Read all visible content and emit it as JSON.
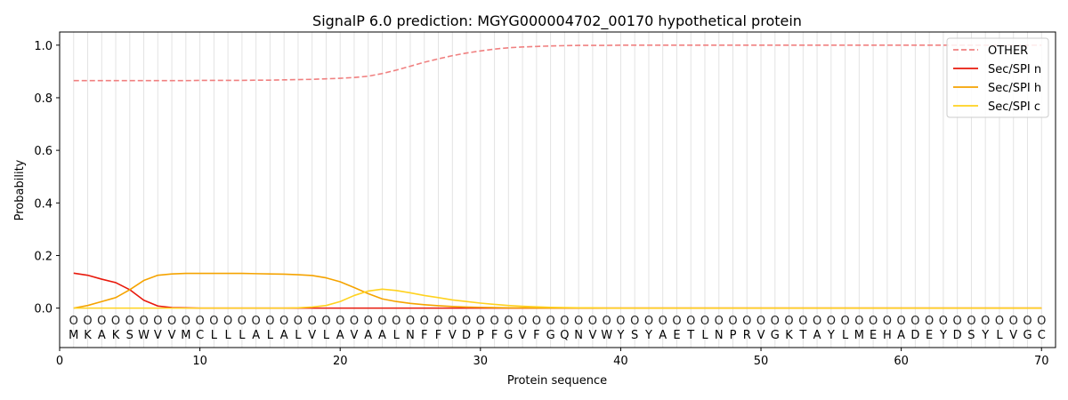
{
  "chart_data": {
    "type": "line",
    "title": "SignalP 6.0 prediction: MGYG000004702_00170 hypothetical protein",
    "xlabel": "Protein sequence",
    "ylabel": "Probability",
    "xlim": [
      0,
      71
    ],
    "ylim": [
      -0.15,
      1.05
    ],
    "xticks": [
      0,
      10,
      20,
      30,
      40,
      50,
      60,
      70
    ],
    "yticks": [
      0.0,
      0.2,
      0.4,
      0.6,
      0.8,
      1.0
    ],
    "ytick_labels": [
      "0.0",
      "0.2",
      "0.4",
      "0.6",
      "0.8",
      "1.0"
    ],
    "grid": "vertical lines at each residue",
    "legend_position": "top-right",
    "sequence": [
      "M",
      "K",
      "A",
      "K",
      "S",
      "W",
      "V",
      "V",
      "M",
      "C",
      "L",
      "L",
      "L",
      "A",
      "L",
      "A",
      "L",
      "V",
      "L",
      "A",
      "V",
      "A",
      "A",
      "L",
      "N",
      "F",
      "F",
      "V",
      "D",
      "P",
      "F",
      "G",
      "V",
      "F",
      "G",
      "Q",
      "N",
      "V",
      "W",
      "Y",
      "S",
      "Y",
      "A",
      "E",
      "T",
      "L",
      "N",
      "P",
      "R",
      "V",
      "G",
      "K",
      "T",
      "A",
      "Y",
      "L",
      "M",
      "E",
      "H",
      "A",
      "D",
      "E",
      "Y",
      "D",
      "S",
      "Y",
      "L",
      "V",
      "G",
      "C"
    ],
    "residue_class_label": "O",
    "series": [
      {
        "name": "OTHER",
        "color": "#f08080",
        "dashed": true,
        "values": [
          0.865,
          0.865,
          0.865,
          0.865,
          0.865,
          0.865,
          0.865,
          0.865,
          0.865,
          0.866,
          0.866,
          0.866,
          0.866,
          0.867,
          0.867,
          0.868,
          0.869,
          0.87,
          0.872,
          0.874,
          0.877,
          0.882,
          0.892,
          0.905,
          0.92,
          0.935,
          0.948,
          0.96,
          0.97,
          0.978,
          0.985,
          0.99,
          0.993,
          0.995,
          0.997,
          0.998,
          0.999,
          0.999,
          0.999,
          1.0,
          1.0,
          1.0,
          1.0,
          1.0,
          1.0,
          1.0,
          1.0,
          1.0,
          1.0,
          1.0,
          1.0,
          1.0,
          1.0,
          1.0,
          1.0,
          1.0,
          1.0,
          1.0,
          1.0,
          1.0,
          1.0,
          1.0,
          1.0,
          1.0,
          1.0,
          1.0,
          1.0,
          1.0,
          1.0,
          1.0
        ]
      },
      {
        "name": "Sec/SPI n",
        "color": "#e8190c",
        "dashed": false,
        "values": [
          0.133,
          0.125,
          0.11,
          0.097,
          0.07,
          0.03,
          0.008,
          0.002,
          0.001,
          0.0,
          0.0,
          0.0,
          0.0,
          0.0,
          0.0,
          0.0,
          0.0,
          0.0,
          0.0,
          0.0,
          0.0,
          0.0,
          0.0,
          0.0,
          0.0,
          0.0,
          0.0,
          0.0,
          0.0,
          0.0,
          0.0,
          0.0,
          0.0,
          0.0,
          0.0,
          0.0,
          0.0,
          0.0,
          0.0,
          0.0,
          0.0,
          0.0,
          0.0,
          0.0,
          0.0,
          0.0,
          0.0,
          0.0,
          0.0,
          0.0,
          0.0,
          0.0,
          0.0,
          0.0,
          0.0,
          0.0,
          0.0,
          0.0,
          0.0,
          0.0,
          0.0,
          0.0,
          0.0,
          0.0,
          0.0,
          0.0,
          0.0,
          0.0,
          0.0,
          0.0
        ]
      },
      {
        "name": "Sec/SPI h",
        "color": "#f5a300",
        "dashed": false,
        "values": [
          0.0,
          0.01,
          0.025,
          0.04,
          0.07,
          0.105,
          0.125,
          0.13,
          0.132,
          0.132,
          0.132,
          0.132,
          0.132,
          0.131,
          0.13,
          0.129,
          0.127,
          0.124,
          0.115,
          0.1,
          0.078,
          0.055,
          0.035,
          0.025,
          0.018,
          0.013,
          0.009,
          0.006,
          0.004,
          0.003,
          0.002,
          0.001,
          0.001,
          0.0,
          0.0,
          0.0,
          0.0,
          0.0,
          0.0,
          0.0,
          0.0,
          0.0,
          0.0,
          0.0,
          0.0,
          0.0,
          0.0,
          0.0,
          0.0,
          0.0,
          0.0,
          0.0,
          0.0,
          0.0,
          0.0,
          0.0,
          0.0,
          0.0,
          0.0,
          0.0,
          0.0,
          0.0,
          0.0,
          0.0,
          0.0,
          0.0,
          0.0,
          0.0,
          0.0,
          0.0
        ]
      },
      {
        "name": "Sec/SPI c",
        "color": "#ffd21f",
        "dashed": false,
        "values": [
          0.0,
          0.0,
          0.0,
          0.0,
          0.0,
          0.0,
          0.0,
          0.0,
          0.0,
          0.0,
          0.0,
          0.0,
          0.0,
          0.0,
          0.0,
          0.0,
          0.001,
          0.004,
          0.01,
          0.025,
          0.048,
          0.065,
          0.072,
          0.067,
          0.058,
          0.048,
          0.04,
          0.031,
          0.025,
          0.019,
          0.014,
          0.01,
          0.007,
          0.005,
          0.003,
          0.002,
          0.001,
          0.001,
          0.0,
          0.0,
          0.0,
          0.0,
          0.0,
          0.0,
          0.0,
          0.0,
          0.0,
          0.0,
          0.0,
          0.0,
          0.0,
          0.0,
          0.0,
          0.0,
          0.0,
          0.0,
          0.0,
          0.0,
          0.0,
          0.0,
          0.0,
          0.0,
          0.0,
          0.0,
          0.0,
          0.0,
          0.0,
          0.0,
          0.0,
          0.0
        ]
      }
    ]
  }
}
